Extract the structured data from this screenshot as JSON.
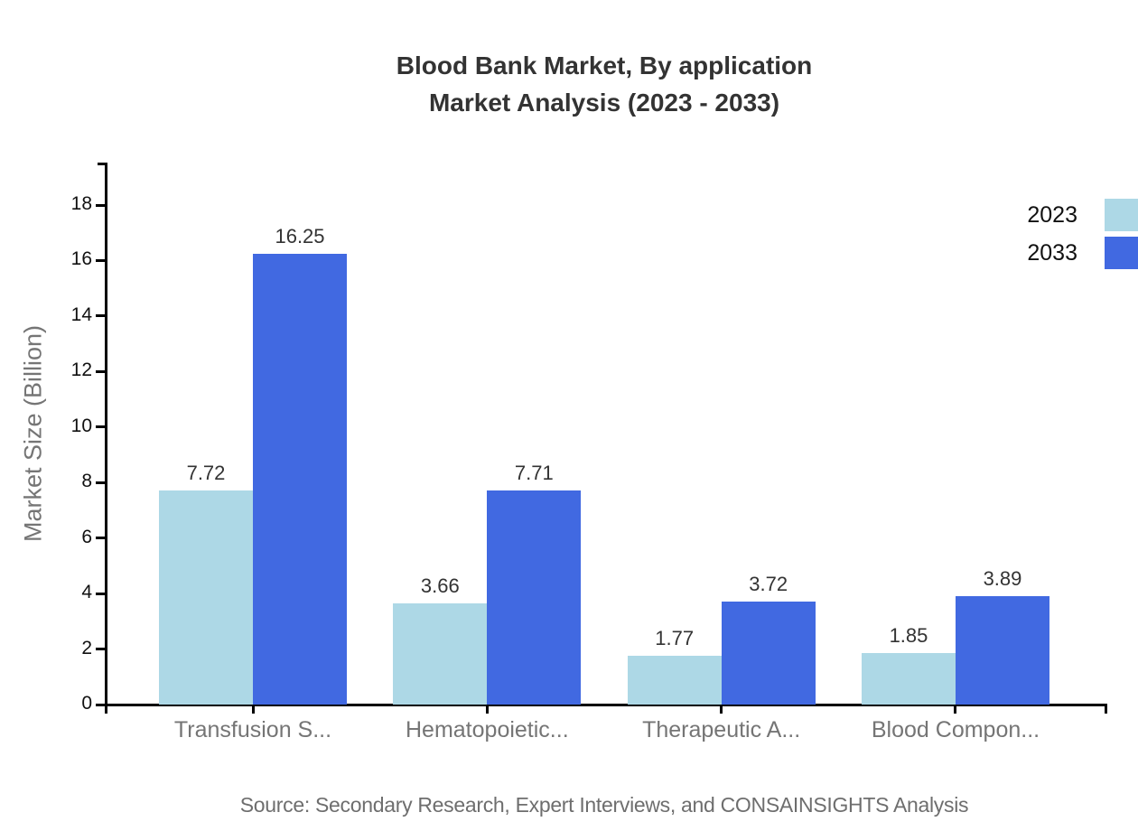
{
  "title": {
    "line1": "Blood Bank Market, By application",
    "line2": "Market Analysis (2023 - 2033)"
  },
  "source": "Source: Secondary Research, Expert Interviews, and CONSAINSIGHTS Analysis",
  "chart_data": {
    "type": "bar",
    "grouped": true,
    "title": "Blood Bank Market, By application Market Analysis (2023 - 2033)",
    "categories": [
      "Transfusion S...",
      "Hematopoietic...",
      "Therapeutic A...",
      "Blood Compon..."
    ],
    "series": [
      {
        "name": "2023",
        "color": "#ADD8E6",
        "values": [
          7.72,
          3.66,
          1.77,
          1.85
        ]
      },
      {
        "name": "2033",
        "color": "#4169E1",
        "values": [
          16.25,
          7.71,
          3.72,
          3.89
        ]
      }
    ],
    "xlabel": "",
    "ylabel": "Market Size (Billion)",
    "ylim": [
      0,
      18
    ],
    "yticks": [
      0,
      2,
      4,
      6,
      8,
      10,
      12,
      14,
      16,
      18
    ],
    "grid": false,
    "legend_position": "top-right",
    "value_labels": true,
    "value_label_format": "2-decimals",
    "axis_color": "#000000",
    "text_colors": {
      "title": "#333333",
      "y_tick_labels": "#111111",
      "x_tick_labels": "#757575",
      "value_labels": "#333333",
      "source": "#6e6e6e"
    }
  }
}
